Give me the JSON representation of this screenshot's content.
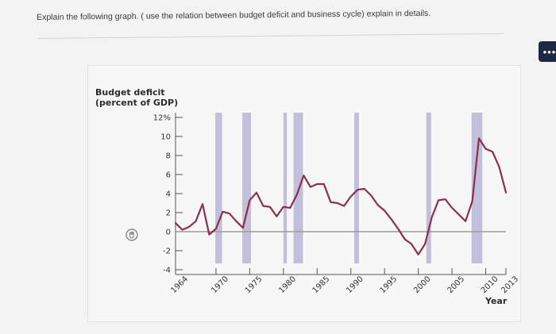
{
  "question": {
    "text": "Explain the following graph. ( use the relation between budget deficit and business cycle) explain in details."
  },
  "more_button": {
    "label": "•••",
    "icon": "ellipsis-icon"
  },
  "hand_icon": "pointer-hand-icon",
  "colors": {
    "line": "#8c2f4e",
    "recession": "#b9b5d6",
    "zero_line": "#9a9a9a",
    "axis": "#555555"
  },
  "chart_data": {
    "type": "line",
    "ylabel": "Budget deficit\n(percent of GDP)",
    "xlabel": "Year",
    "ylim": [
      -4,
      12
    ],
    "xlim": [
      1964,
      2013
    ],
    "y_ticks": [
      "12%",
      "10",
      "8",
      "6",
      "4",
      "2",
      "0",
      "-2",
      "-4"
    ],
    "y_tick_values": [
      12,
      10,
      8,
      6,
      4,
      2,
      0,
      -2,
      -4
    ],
    "x_ticks": [
      "1964",
      "1970",
      "1975",
      "1980",
      "1985",
      "1990",
      "1995",
      "2000",
      "2005",
      "2010",
      "2013"
    ],
    "x_tick_values": [
      1964,
      1970,
      1975,
      1980,
      1985,
      1990,
      1995,
      2000,
      2005,
      2010,
      2013
    ],
    "recessions": [
      [
        1969.9,
        1970.9
      ],
      [
        1973.9,
        1975.2
      ],
      [
        1980.0,
        1980.5
      ],
      [
        1981.5,
        1982.9
      ],
      [
        1990.5,
        1991.2
      ],
      [
        2001.2,
        2001.9
      ],
      [
        2007.9,
        2009.5
      ]
    ],
    "series": [
      {
        "x": [
          1964,
          1965,
          1966,
          1967,
          1968,
          1969,
          1970,
          1971,
          1972,
          1973,
          1974,
          1975,
          1976,
          1977,
          1978,
          1979,
          1980,
          1981,
          1982,
          1983,
          1984,
          1985,
          1986,
          1987,
          1988,
          1989,
          1990,
          1991,
          1992,
          1993,
          1994,
          1995,
          1996,
          1997,
          1998,
          1999,
          2000,
          2001,
          2002,
          2003,
          2004,
          2005,
          2006,
          2007,
          2008,
          2009,
          2010,
          2011,
          2012,
          2013
        ],
        "values": [
          0.9,
          0.2,
          0.5,
          1.1,
          2.9,
          -0.3,
          0.3,
          2.1,
          1.9,
          1.1,
          0.4,
          3.3,
          4.1,
          2.7,
          2.6,
          1.6,
          2.6,
          2.5,
          3.9,
          5.9,
          4.7,
          5.0,
          5.0,
          3.1,
          3.0,
          2.7,
          3.7,
          4.4,
          4.5,
          3.8,
          2.8,
          2.2,
          1.3,
          0.3,
          -0.8,
          -1.3,
          -2.4,
          -1.3,
          1.5,
          3.3,
          3.4,
          2.5,
          1.8,
          1.1,
          3.2,
          9.8,
          8.7,
          8.4,
          6.8,
          4.1
        ]
      }
    ]
  }
}
